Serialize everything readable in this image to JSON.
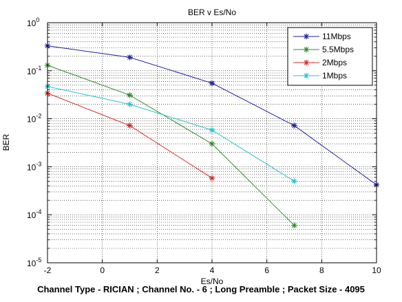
{
  "chart_data": {
    "type": "line",
    "title": "BER v Es/No",
    "xlabel": "Es/No",
    "ylabel": "BER",
    "xlim": [
      -2,
      10
    ],
    "ylim": [
      1e-05,
      1
    ],
    "y_scale": "log",
    "x_ticks": [
      "-2",
      "0",
      "2",
      "4",
      "6",
      "8",
      "10"
    ],
    "y_ticks": [
      {
        "base": "10",
        "exp": "0"
      },
      {
        "base": "10",
        "exp": "-1"
      },
      {
        "base": "10",
        "exp": "-2"
      },
      {
        "base": "10",
        "exp": "-3"
      },
      {
        "base": "10",
        "exp": "-4"
      },
      {
        "base": "10",
        "exp": "-5"
      }
    ],
    "grid": true,
    "legend_position": "top-right",
    "series": [
      {
        "name": "11Mbps",
        "color": "#1f1f9e",
        "x": [
          -2,
          1,
          4,
          7,
          10
        ],
        "y": [
          0.33,
          0.19,
          0.055,
          0.0072,
          0.00042
        ]
      },
      {
        "name": "5.5Mbps",
        "color": "#2e8b2e",
        "x": [
          -2,
          1,
          4,
          7
        ],
        "y": [
          0.13,
          0.031,
          0.003,
          6e-05
        ]
      },
      {
        "name": "2Mbps",
        "color": "#d42a2a",
        "x": [
          -2,
          1,
          4
        ],
        "y": [
          0.034,
          0.0072,
          0.00058
        ]
      },
      {
        "name": "1Mbps",
        "color": "#27c2cf",
        "x": [
          -2,
          1,
          4,
          7
        ],
        "y": [
          0.047,
          0.02,
          0.0058,
          0.0005
        ]
      }
    ]
  },
  "caption": "Channel Type - RICIAN ; Channel No. - 6 ; Long Preamble ; Packet Size - 4095"
}
